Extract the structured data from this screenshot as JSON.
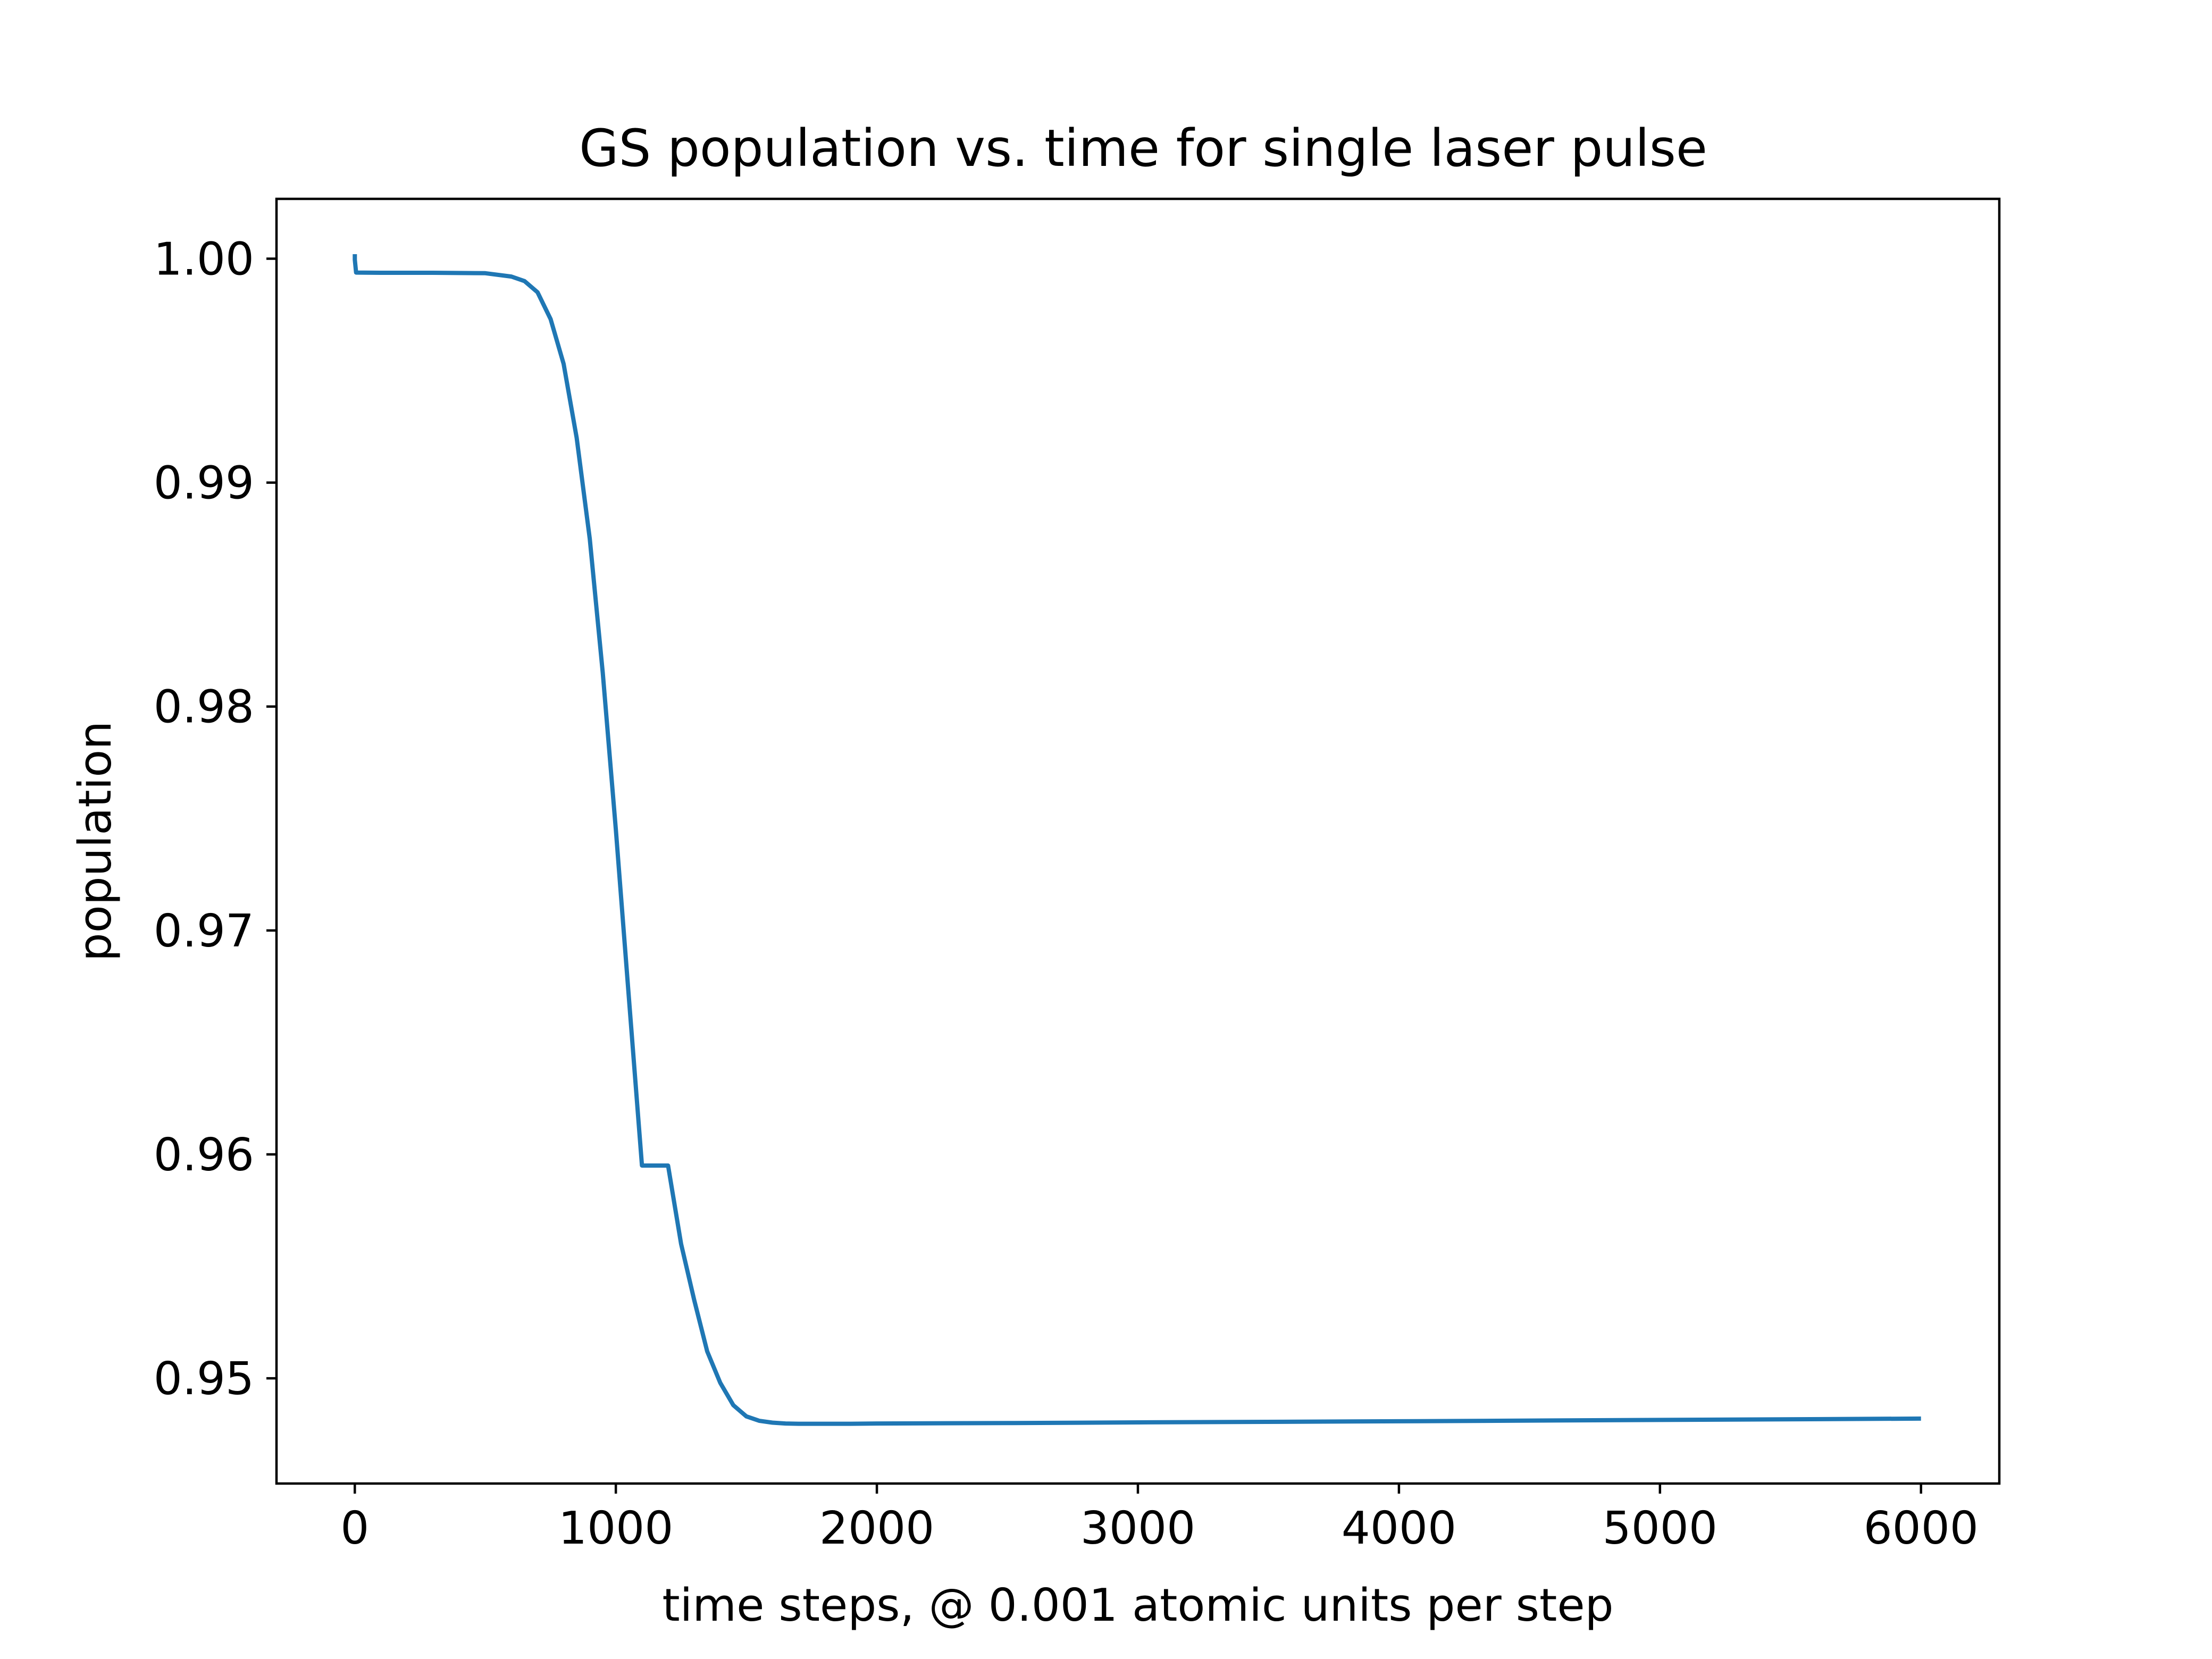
{
  "chart_data": {
    "type": "line",
    "title": "GS population vs. time for single laser pulse",
    "xlabel": "time steps, @ 0.001 atomic units per step",
    "ylabel": "population",
    "xlim": [
      -300,
      6300
    ],
    "ylim": [
      0.9453,
      1.00267
    ],
    "xticks": [
      0,
      1000,
      2000,
      3000,
      4000,
      5000,
      6000
    ],
    "xtick_labels": [
      "0",
      "1000",
      "2000",
      "3000",
      "4000",
      "5000",
      "6000"
    ],
    "yticks": [
      0.95,
      0.96,
      0.97,
      0.98,
      0.99,
      1.0
    ],
    "ytick_labels": [
      "0.95",
      "0.96",
      "0.97",
      "0.98",
      "0.99",
      "1.00"
    ],
    "grid": false,
    "legend": null,
    "series": [
      {
        "color": "#1f77b4",
        "x": [
          0,
          0,
          5,
          100,
          300,
          500,
          600,
          650,
          700,
          750,
          800,
          850,
          900,
          950,
          1000,
          1050,
          1100,
          1150,
          1200,
          1250,
          1300,
          1350,
          1400,
          1450,
          1500,
          1550,
          1600,
          1650,
          1700,
          1800,
          1900,
          2000,
          2500,
          3000,
          4000,
          5000,
          6000
        ],
        "y": [
          1.0002,
          0.99995,
          0.99938,
          0.99937,
          0.99937,
          0.99935,
          0.9992,
          0.999,
          0.9985,
          0.9973,
          0.9953,
          0.992,
          0.9875,
          0.9815,
          0.9745,
          0.967,
          0.9595,
          0.9595,
          0.9595,
          0.956,
          0.9535,
          0.9512,
          0.9498,
          0.9488,
          0.9483,
          0.9481,
          0.94802,
          0.94798,
          0.94797,
          0.94797,
          0.94797,
          0.94798,
          0.948,
          0.94803,
          0.94808,
          0.94814,
          0.9482
        ]
      }
    ]
  }
}
